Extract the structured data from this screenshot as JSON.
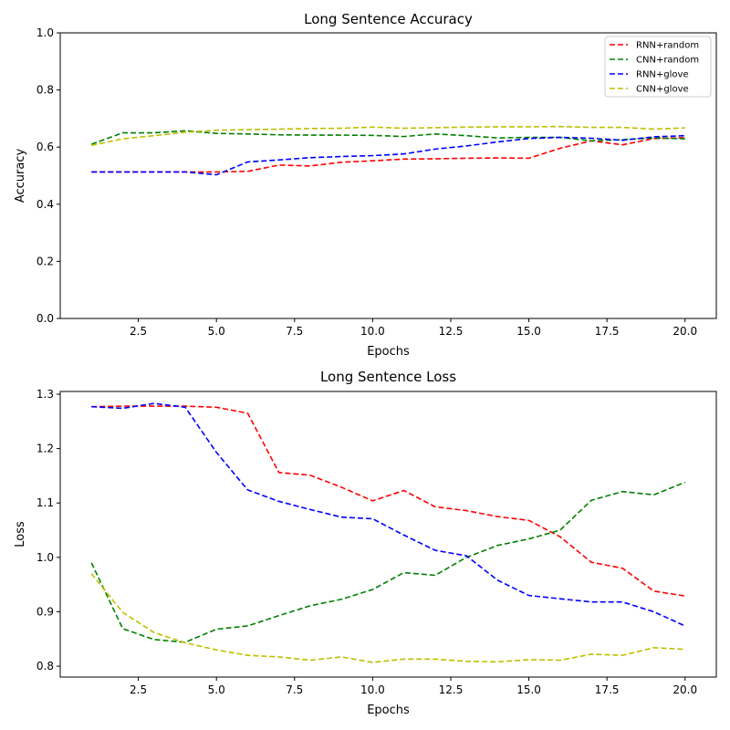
{
  "chart_data": [
    {
      "type": "line",
      "title": "Long Sentence Accuracy",
      "xlabel": "Epochs",
      "ylabel": "Accuracy",
      "xlim": [
        0,
        21
      ],
      "ylim": [
        0.0,
        1.0
      ],
      "xticks": [
        2.5,
        5.0,
        7.5,
        10.0,
        12.5,
        15.0,
        17.5,
        20.0
      ],
      "xtick_labels": [
        "2.5",
        "5.0",
        "7.5",
        "10.0",
        "12.5",
        "15.0",
        "17.5",
        "20.0"
      ],
      "yticks": [
        0.0,
        0.2,
        0.4,
        0.6,
        0.8,
        1.0
      ],
      "ytick_labels": [
        "0.0",
        "0.2",
        "0.4",
        "0.6",
        "0.8",
        "1.0"
      ],
      "grid": false,
      "legend_position": "top-right",
      "x": [
        1,
        2,
        3,
        4,
        5,
        6,
        7,
        8,
        9,
        10,
        11,
        12,
        13,
        14,
        15,
        16,
        17,
        18,
        19,
        20
      ],
      "series": [
        {
          "name": "RNN+random",
          "color": "#ff0000",
          "values": [
            0.513,
            0.513,
            0.513,
            0.513,
            0.513,
            0.515,
            0.537,
            0.534,
            0.547,
            0.552,
            0.558,
            0.559,
            0.561,
            0.562,
            0.561,
            0.596,
            0.622,
            0.608,
            0.63,
            0.633
          ]
        },
        {
          "name": "CNN+random",
          "color": "#008000",
          "values": [
            0.61,
            0.65,
            0.65,
            0.657,
            0.648,
            0.646,
            0.643,
            0.642,
            0.642,
            0.641,
            0.637,
            0.646,
            0.64,
            0.632,
            0.634,
            0.634,
            0.622,
            0.626,
            0.632,
            0.629
          ]
        },
        {
          "name": "RNN+glove",
          "color": "#0000ff",
          "values": [
            0.513,
            0.513,
            0.513,
            0.513,
            0.503,
            0.548,
            0.555,
            0.563,
            0.567,
            0.57,
            0.576,
            0.593,
            0.604,
            0.618,
            0.63,
            0.634,
            0.631,
            0.624,
            0.636,
            0.64
          ]
        },
        {
          "name": "CNN+glove",
          "color": "#bfbf00",
          "values": [
            0.606,
            0.629,
            0.64,
            0.652,
            0.659,
            0.661,
            0.663,
            0.665,
            0.666,
            0.67,
            0.666,
            0.668,
            0.67,
            0.671,
            0.671,
            0.672,
            0.669,
            0.669,
            0.663,
            0.667
          ]
        }
      ]
    },
    {
      "type": "line",
      "title": "Long Sentence Loss",
      "xlabel": "Epochs",
      "ylabel": "Loss",
      "xlim": [
        0,
        21
      ],
      "ylim": [
        0.78,
        1.305
      ],
      "xticks": [
        2.5,
        5.0,
        7.5,
        10.0,
        12.5,
        15.0,
        17.5,
        20.0
      ],
      "xtick_labels": [
        "2.5",
        "5.0",
        "7.5",
        "10.0",
        "12.5",
        "15.0",
        "17.5",
        "20.0"
      ],
      "yticks": [
        0.8,
        0.9,
        1.0,
        1.1,
        1.2,
        1.3
      ],
      "ytick_labels": [
        "0.8",
        "0.9",
        "1.0",
        "1.1",
        "1.2",
        "1.3"
      ],
      "grid": false,
      "x": [
        1,
        2,
        3,
        4,
        5,
        6,
        7,
        8,
        9,
        10,
        11,
        12,
        13,
        14,
        15,
        16,
        17,
        18,
        19,
        20
      ],
      "series": [
        {
          "name": "RNN+random",
          "color": "#ff0000",
          "values": [
            1.277,
            1.278,
            1.278,
            1.278,
            1.276,
            1.265,
            1.156,
            1.151,
            1.129,
            1.104,
            1.123,
            1.093,
            1.086,
            1.075,
            1.068,
            1.038,
            0.991,
            0.98,
            0.938,
            0.929
          ]
        },
        {
          "name": "CNN+random",
          "color": "#008000",
          "values": [
            0.99,
            0.869,
            0.849,
            0.844,
            0.868,
            0.874,
            0.893,
            0.911,
            0.923,
            0.941,
            0.972,
            0.967,
            1.0,
            1.022,
            1.034,
            1.05,
            1.105,
            1.121,
            1.115,
            1.138
          ]
        },
        {
          "name": "RNN+glove",
          "color": "#0000ff",
          "values": [
            1.277,
            1.274,
            1.283,
            1.276,
            1.193,
            1.124,
            1.103,
            1.088,
            1.074,
            1.071,
            1.041,
            1.013,
            1.003,
            0.958,
            0.93,
            0.924,
            0.918,
            0.918,
            0.9,
            0.874
          ]
        },
        {
          "name": "CNN+glove",
          "color": "#bfbf00",
          "values": [
            0.97,
            0.899,
            0.862,
            0.843,
            0.83,
            0.82,
            0.817,
            0.811,
            0.817,
            0.807,
            0.813,
            0.813,
            0.809,
            0.808,
            0.812,
            0.811,
            0.822,
            0.82,
            0.834,
            0.831
          ]
        }
      ]
    }
  ]
}
